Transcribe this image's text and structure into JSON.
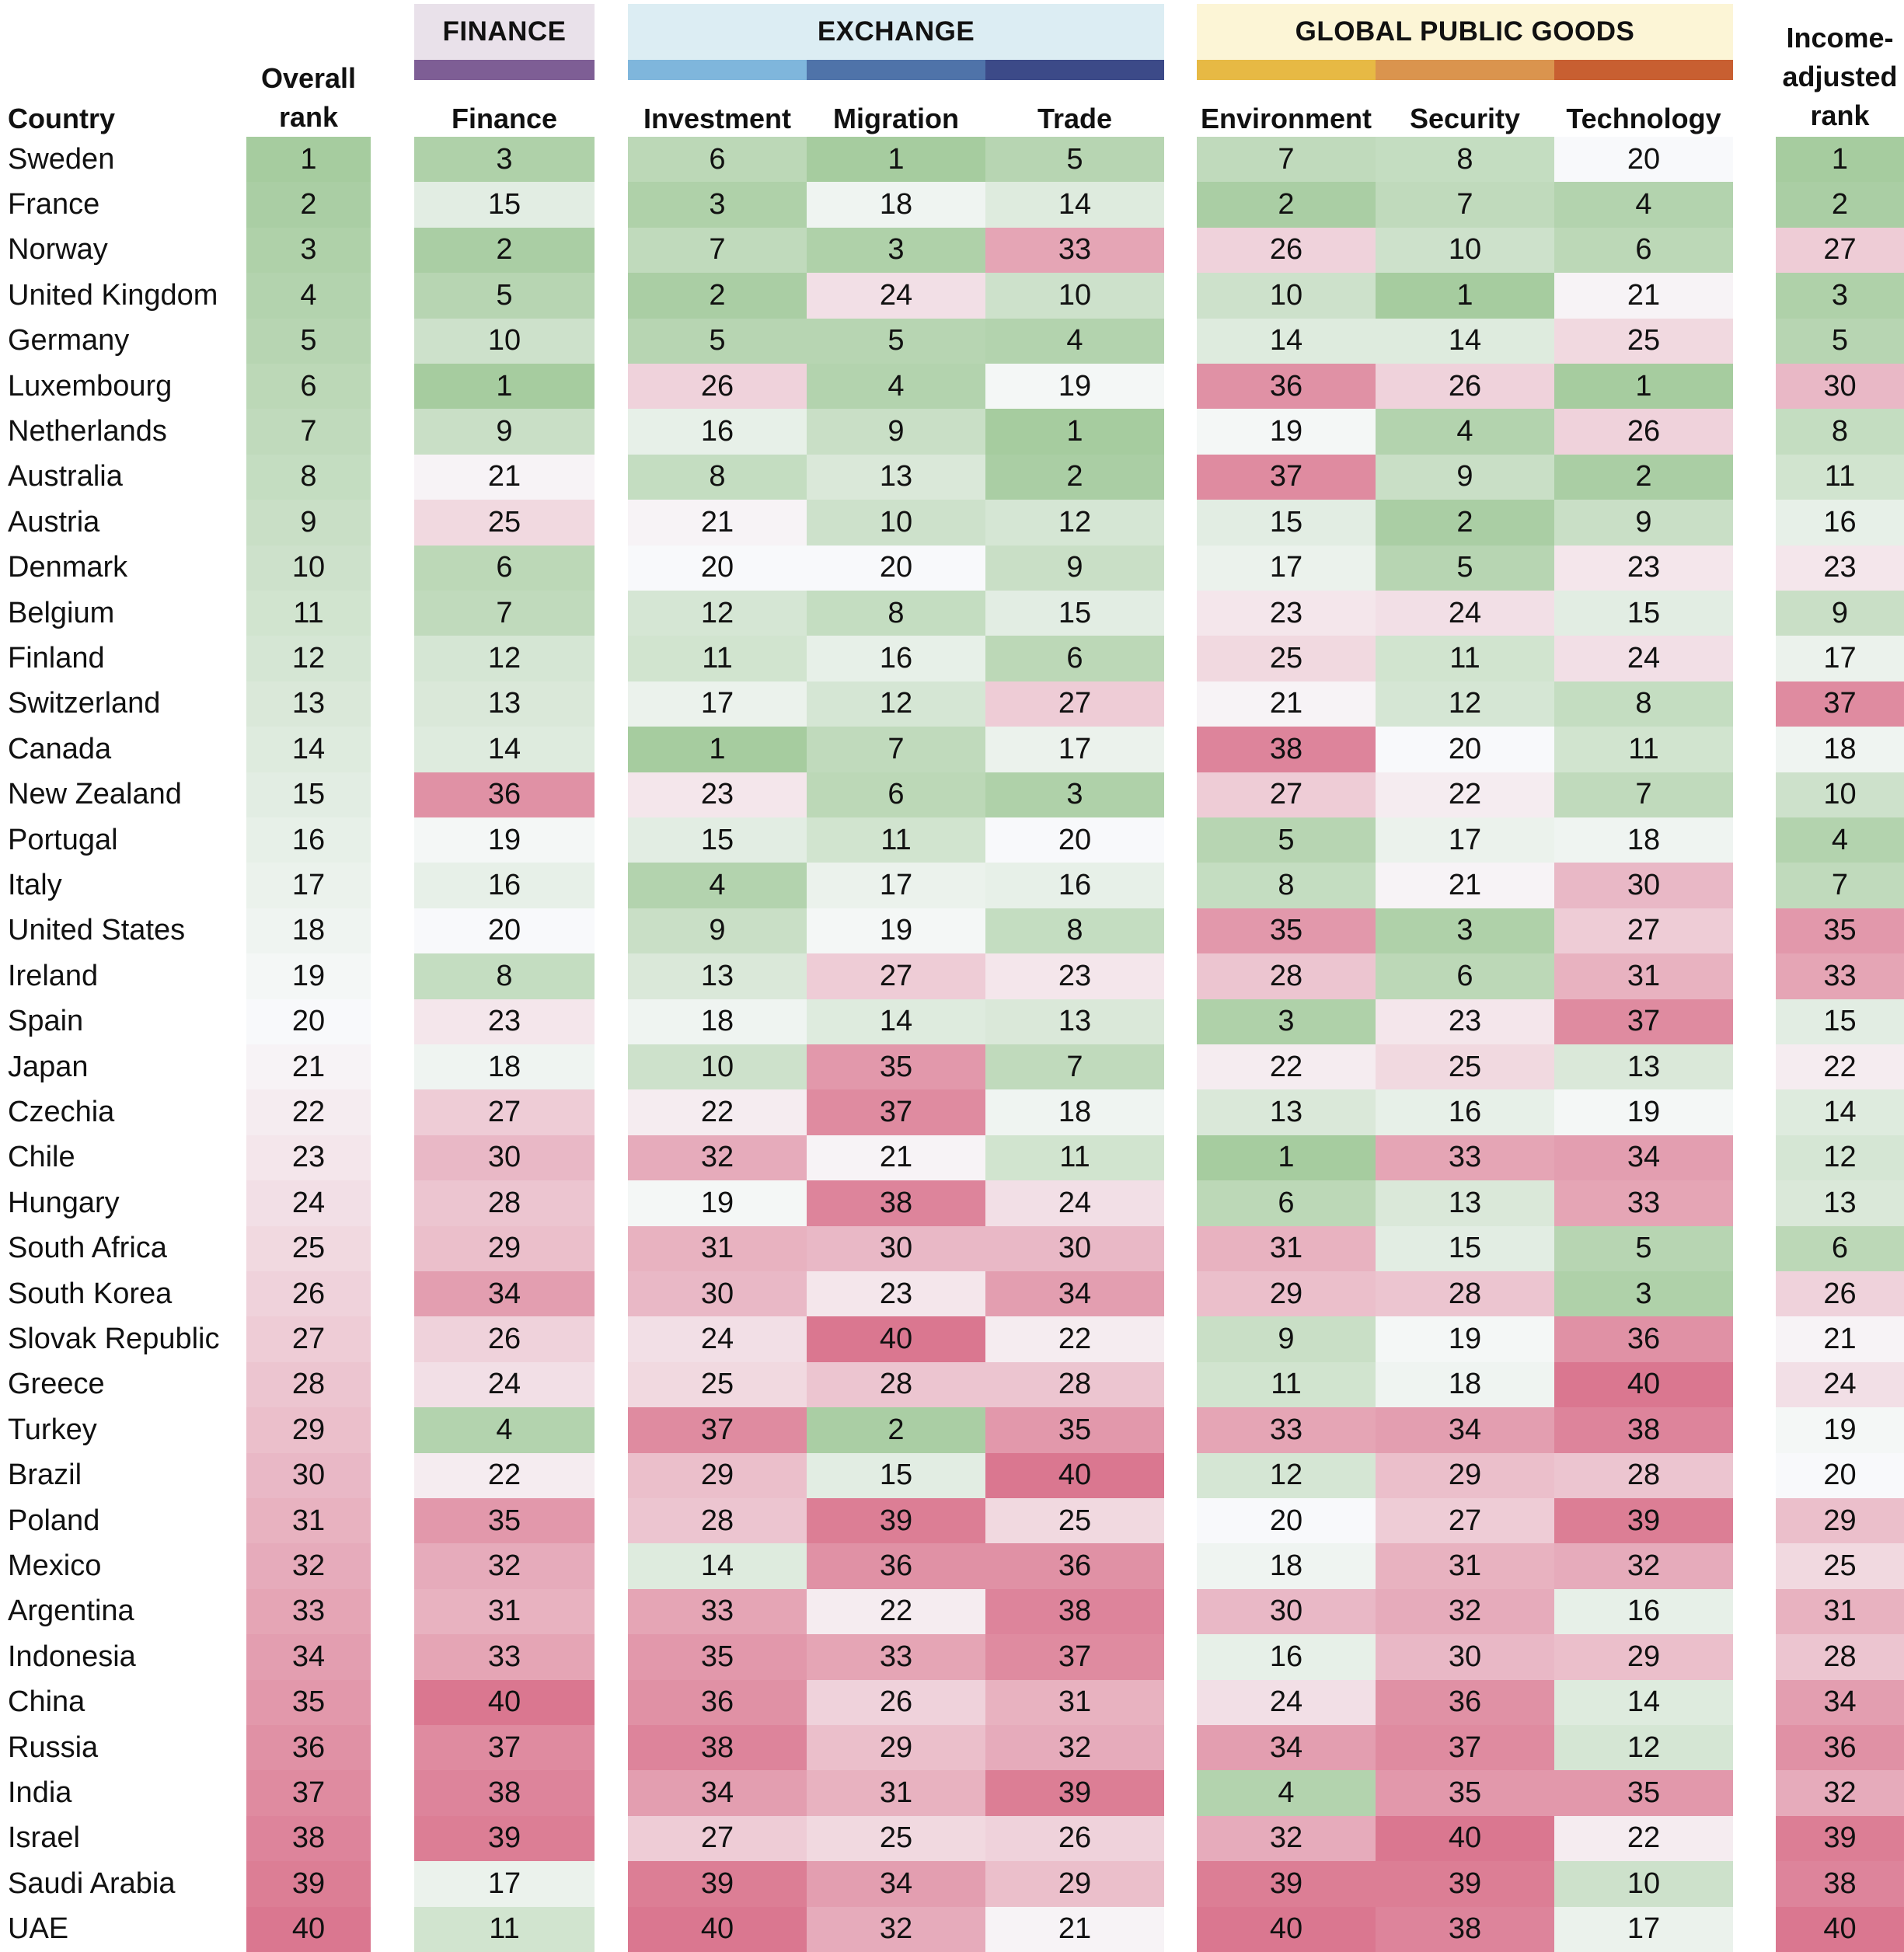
{
  "groups": [
    {
      "label": "FINANCE",
      "bg": "#e9e1ea",
      "bands": [
        "#7e5e95"
      ]
    },
    {
      "label": "EXCHANGE",
      "bg": "#dcedf3",
      "bands": [
        "#7fb6dc",
        "#4f73a9",
        "#3c4a88"
      ]
    },
    {
      "label": "GLOBAL PUBLIC GOODS",
      "bg": "#fcf5d6",
      "bands": [
        "#e7b944",
        "#da944e",
        "#c85f31"
      ]
    }
  ],
  "headers": {
    "country": "Country",
    "overall": [
      "Overall",
      "rank"
    ],
    "finance": "Finance",
    "investment": "Investment",
    "migration": "Migration",
    "trade": "Trade",
    "environment": "Environment",
    "security": "Security",
    "technology": "Technology",
    "income": [
      "Income-",
      "adjusted",
      "rank"
    ]
  },
  "colors": {
    "best": "#a6cc9f",
    "mid": "#f8f9fb",
    "worst": "#da7790"
  },
  "chart_data": {
    "type": "heatmap",
    "columns": [
      "Overall rank",
      "Finance",
      "Investment",
      "Migration",
      "Trade",
      "Environment",
      "Security",
      "Technology",
      "Income-adjusted rank"
    ],
    "rows": [
      {
        "country": "Sweden",
        "values": [
          1,
          3,
          6,
          1,
          5,
          7,
          8,
          20,
          1
        ]
      },
      {
        "country": "France",
        "values": [
          2,
          15,
          3,
          18,
          14,
          2,
          7,
          4,
          2
        ]
      },
      {
        "country": "Norway",
        "values": [
          3,
          2,
          7,
          3,
          33,
          26,
          10,
          6,
          27
        ]
      },
      {
        "country": "United Kingdom",
        "values": [
          4,
          5,
          2,
          24,
          10,
          10,
          1,
          21,
          3
        ]
      },
      {
        "country": "Germany",
        "values": [
          5,
          10,
          5,
          5,
          4,
          14,
          14,
          25,
          5
        ]
      },
      {
        "country": "Luxembourg",
        "values": [
          6,
          1,
          26,
          4,
          19,
          36,
          26,
          1,
          30
        ]
      },
      {
        "country": "Netherlands",
        "values": [
          7,
          9,
          16,
          9,
          1,
          19,
          4,
          26,
          8
        ]
      },
      {
        "country": "Australia",
        "values": [
          8,
          21,
          8,
          13,
          2,
          37,
          9,
          2,
          11
        ]
      },
      {
        "country": "Austria",
        "values": [
          9,
          25,
          21,
          10,
          12,
          15,
          2,
          9,
          16
        ]
      },
      {
        "country": "Denmark",
        "values": [
          10,
          6,
          20,
          20,
          9,
          17,
          5,
          23,
          23
        ]
      },
      {
        "country": "Belgium",
        "values": [
          11,
          7,
          12,
          8,
          15,
          23,
          24,
          15,
          9
        ]
      },
      {
        "country": "Finland",
        "values": [
          12,
          12,
          11,
          16,
          6,
          25,
          11,
          24,
          17
        ]
      },
      {
        "country": "Switzerland",
        "values": [
          13,
          13,
          17,
          12,
          27,
          21,
          12,
          8,
          37
        ]
      },
      {
        "country": "Canada",
        "values": [
          14,
          14,
          1,
          7,
          17,
          38,
          20,
          11,
          18
        ]
      },
      {
        "country": "New Zealand",
        "values": [
          15,
          36,
          23,
          6,
          3,
          27,
          22,
          7,
          10
        ]
      },
      {
        "country": "Portugal",
        "values": [
          16,
          19,
          15,
          11,
          20,
          5,
          17,
          18,
          4
        ]
      },
      {
        "country": "Italy",
        "values": [
          17,
          16,
          4,
          17,
          16,
          8,
          21,
          30,
          7
        ]
      },
      {
        "country": "United States",
        "values": [
          18,
          20,
          9,
          19,
          8,
          35,
          3,
          27,
          35
        ]
      },
      {
        "country": "Ireland",
        "values": [
          19,
          8,
          13,
          27,
          23,
          28,
          6,
          31,
          33
        ]
      },
      {
        "country": "Spain",
        "values": [
          20,
          23,
          18,
          14,
          13,
          3,
          23,
          37,
          15
        ]
      },
      {
        "country": "Japan",
        "values": [
          21,
          18,
          10,
          35,
          7,
          22,
          25,
          13,
          22
        ]
      },
      {
        "country": "Czechia",
        "values": [
          22,
          27,
          22,
          37,
          18,
          13,
          16,
          19,
          14
        ]
      },
      {
        "country": "Chile",
        "values": [
          23,
          30,
          32,
          21,
          11,
          1,
          33,
          34,
          12
        ]
      },
      {
        "country": "Hungary",
        "values": [
          24,
          28,
          19,
          38,
          24,
          6,
          13,
          33,
          13
        ]
      },
      {
        "country": "South Africa",
        "values": [
          25,
          29,
          31,
          30,
          30,
          31,
          15,
          5,
          6
        ]
      },
      {
        "country": "South Korea",
        "values": [
          26,
          34,
          30,
          23,
          34,
          29,
          28,
          3,
          26
        ]
      },
      {
        "country": "Slovak Republic",
        "values": [
          27,
          26,
          24,
          40,
          22,
          9,
          19,
          36,
          21
        ]
      },
      {
        "country": "Greece",
        "values": [
          28,
          24,
          25,
          28,
          28,
          11,
          18,
          40,
          24
        ]
      },
      {
        "country": "Turkey",
        "values": [
          29,
          4,
          37,
          2,
          35,
          33,
          34,
          38,
          19
        ]
      },
      {
        "country": "Brazil",
        "values": [
          30,
          22,
          29,
          15,
          40,
          12,
          29,
          28,
          20
        ]
      },
      {
        "country": "Poland",
        "values": [
          31,
          35,
          28,
          39,
          25,
          20,
          27,
          39,
          29
        ]
      },
      {
        "country": "Mexico",
        "values": [
          32,
          32,
          14,
          36,
          36,
          18,
          31,
          32,
          25
        ]
      },
      {
        "country": "Argentina",
        "values": [
          33,
          31,
          33,
          22,
          38,
          30,
          32,
          16,
          31
        ]
      },
      {
        "country": "Indonesia",
        "values": [
          34,
          33,
          35,
          33,
          37,
          16,
          30,
          29,
          28
        ]
      },
      {
        "country": "China",
        "values": [
          35,
          40,
          36,
          26,
          31,
          24,
          36,
          14,
          34
        ]
      },
      {
        "country": "Russia",
        "values": [
          36,
          37,
          38,
          29,
          32,
          34,
          37,
          12,
          36
        ]
      },
      {
        "country": "India",
        "values": [
          37,
          38,
          34,
          31,
          39,
          4,
          35,
          35,
          32
        ]
      },
      {
        "country": "Israel",
        "values": [
          38,
          39,
          27,
          25,
          26,
          32,
          40,
          22,
          39
        ]
      },
      {
        "country": "Saudi Arabia",
        "values": [
          39,
          17,
          39,
          34,
          29,
          39,
          39,
          10,
          38
        ]
      },
      {
        "country": "UAE",
        "values": [
          40,
          11,
          40,
          32,
          21,
          40,
          38,
          17,
          40
        ]
      }
    ]
  }
}
